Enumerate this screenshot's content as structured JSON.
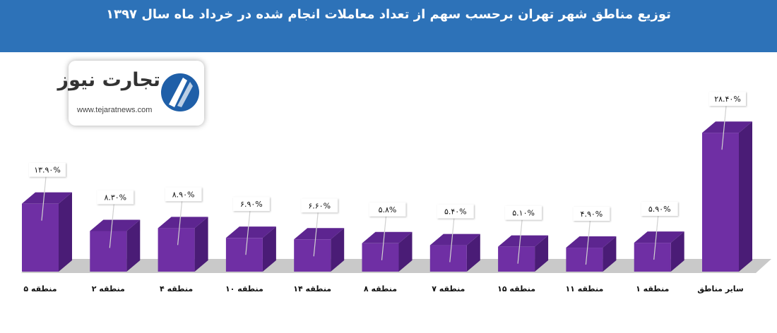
{
  "title": "توزیع مناطق شهر تهران برحسب سهم از تعداد معاملات انجام شده در خرداد ماه سال ۱۳۹۷",
  "logo": {
    "brand": "تجارت نیوز",
    "url": "www.tejaratnews.com"
  },
  "colors": {
    "header": "#2d72b8",
    "bar_front": "#6f2fa4",
    "bar_top": "#5d2590",
    "bar_side": "#4a1c76",
    "floor": "#c9c9c9"
  },
  "chart_data": {
    "type": "bar",
    "categories": [
      "منطقه ۵",
      "منطقه ۲",
      "منطقه ۴",
      "منطقه ۱۰",
      "منطقه ۱۴",
      "منطقه ۸",
      "منطقه ۷",
      "منطقه ۱۵",
      "منطقه ۱۱",
      "منطقه ۱",
      "سایر مناطق"
    ],
    "values": [
      13.9,
      8.3,
      8.9,
      6.9,
      6.6,
      5.8,
      5.4,
      5.1,
      4.9,
      5.9,
      28.4
    ],
    "data_labels": [
      "۱۳.۹۰%",
      "۸.۳۰%",
      "۸.۹۰%",
      "۶.۹۰%",
      "۶.۶۰%",
      "۵.۸%",
      "۵.۴۰%",
      "۵.۱۰%",
      "۴.۹۰%",
      "۵.۹۰%",
      "۲۸.۴۰%"
    ],
    "grid": false,
    "legend": "none"
  }
}
